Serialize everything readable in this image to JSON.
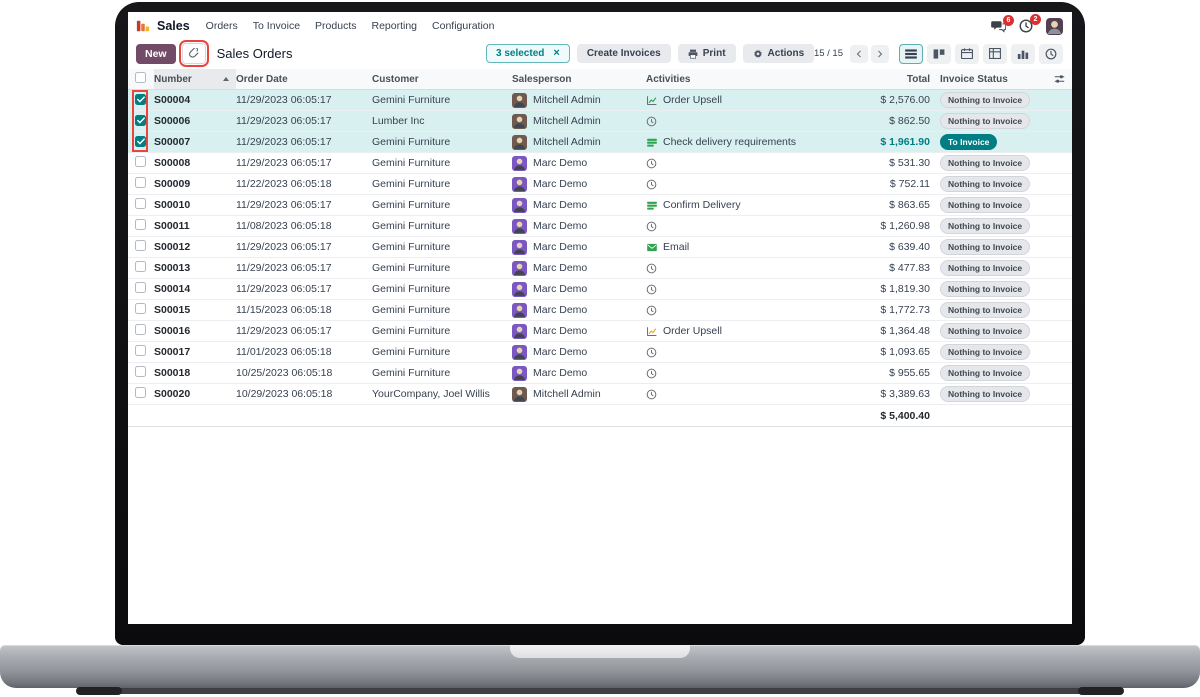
{
  "nav": {
    "app_name": "Sales",
    "menu_items": [
      "Orders",
      "To Invoice",
      "Products",
      "Reporting",
      "Configuration"
    ],
    "messages_badge": "6",
    "activities_badge": "2"
  },
  "control_bar": {
    "new_button": "New",
    "breadcrumb": "Sales Orders",
    "selected_count": "3 selected",
    "deselect_icon": "×",
    "create_invoices_button": "Create Invoices",
    "print_button": "Print",
    "actions_button": "Actions",
    "pager": "1-15 / 15"
  },
  "table": {
    "headers": {
      "number": "Number",
      "order_date": "Order Date",
      "customer": "Customer",
      "salesperson": "Salesperson",
      "activities": "Activities",
      "total": "Total",
      "invoice_status": "Invoice Status"
    },
    "rows": [
      {
        "number": "S00004",
        "order_date": "11/29/2023 06:05:17",
        "customer": "Gemini Furniture",
        "salesperson": "Mitchell Admin",
        "avatar": "mitchell",
        "activity": {
          "type": "upsell",
          "label": "Order Upsell",
          "color": "#2EA44F"
        },
        "total": "$ 2,576.00",
        "total_accent": false,
        "status": "Nothing to Invoice",
        "status_variant": "muted",
        "selected": true
      },
      {
        "number": "S00006",
        "order_date": "11/29/2023 06:05:17",
        "customer": "Lumber Inc",
        "salesperson": "Mitchell Admin",
        "avatar": "mitchell",
        "activity": {
          "type": "clock",
          "label": "",
          "color": "#6a6f75"
        },
        "total": "$ 862.50",
        "total_accent": false,
        "status": "Nothing to Invoice",
        "status_variant": "muted",
        "selected": true
      },
      {
        "number": "S00007",
        "order_date": "11/29/2023 06:05:17",
        "customer": "Gemini Furniture",
        "salesperson": "Mitchell Admin",
        "avatar": "mitchell",
        "activity": {
          "type": "list",
          "label": "Check delivery requirements",
          "color": "#2EA44F"
        },
        "total": "$ 1,961.90",
        "total_accent": true,
        "status": "To Invoice",
        "status_variant": "accent",
        "selected": true
      },
      {
        "number": "S00008",
        "order_date": "11/29/2023 06:05:17",
        "customer": "Gemini Furniture",
        "salesperson": "Marc Demo",
        "avatar": "marc",
        "activity": {
          "type": "clock",
          "label": "",
          "color": "#6a6f75"
        },
        "total": "$ 531.30",
        "total_accent": false,
        "status": "Nothing to Invoice",
        "status_variant": "muted",
        "selected": false
      },
      {
        "number": "S00009",
        "order_date": "11/22/2023 06:05:18",
        "customer": "Gemini Furniture",
        "salesperson": "Marc Demo",
        "avatar": "marc",
        "activity": {
          "type": "clock",
          "label": "",
          "color": "#6a6f75"
        },
        "total": "$ 752.11",
        "total_accent": false,
        "status": "Nothing to Invoice",
        "status_variant": "muted",
        "selected": false
      },
      {
        "number": "S00010",
        "order_date": "11/29/2023 06:05:17",
        "customer": "Gemini Furniture",
        "salesperson": "Marc Demo",
        "avatar": "marc",
        "activity": {
          "type": "list",
          "label": "Confirm Delivery",
          "color": "#2EA44F"
        },
        "total": "$ 863.65",
        "total_accent": false,
        "status": "Nothing to Invoice",
        "status_variant": "muted",
        "selected": false
      },
      {
        "number": "S00011",
        "order_date": "11/08/2023 06:05:18",
        "customer": "Gemini Furniture",
        "salesperson": "Marc Demo",
        "avatar": "marc",
        "activity": {
          "type": "clock",
          "label": "",
          "color": "#6a6f75"
        },
        "total": "$ 1,260.98",
        "total_accent": false,
        "status": "Nothing to Invoice",
        "status_variant": "muted",
        "selected": false
      },
      {
        "number": "S00012",
        "order_date": "11/29/2023 06:05:17",
        "customer": "Gemini Furniture",
        "salesperson": "Marc Demo",
        "avatar": "marc",
        "activity": {
          "type": "email",
          "label": "Email",
          "color": "#2EA44F"
        },
        "total": "$ 639.40",
        "total_accent": false,
        "status": "Nothing to Invoice",
        "status_variant": "muted",
        "selected": false
      },
      {
        "number": "S00013",
        "order_date": "11/29/2023 06:05:17",
        "customer": "Gemini Furniture",
        "salesperson": "Marc Demo",
        "avatar": "marc",
        "activity": {
          "type": "clock",
          "label": "",
          "color": "#6a6f75"
        },
        "total": "$ 477.83",
        "total_accent": false,
        "status": "Nothing to Invoice",
        "status_variant": "muted",
        "selected": false
      },
      {
        "number": "S00014",
        "order_date": "11/29/2023 06:05:17",
        "customer": "Gemini Furniture",
        "salesperson": "Marc Demo",
        "avatar": "marc",
        "activity": {
          "type": "clock",
          "label": "",
          "color": "#6a6f75"
        },
        "total": "$ 1,819.30",
        "total_accent": false,
        "status": "Nothing to Invoice",
        "status_variant": "muted",
        "selected": false
      },
      {
        "number": "S00015",
        "order_date": "11/15/2023 06:05:18",
        "customer": "Gemini Furniture",
        "salesperson": "Marc Demo",
        "avatar": "marc",
        "activity": {
          "type": "clock",
          "label": "",
          "color": "#6a6f75"
        },
        "total": "$ 1,772.73",
        "total_accent": false,
        "status": "Nothing to Invoice",
        "status_variant": "muted",
        "selected": false
      },
      {
        "number": "S00016",
        "order_date": "11/29/2023 06:05:17",
        "customer": "Gemini Furniture",
        "salesperson": "Marc Demo",
        "avatar": "marc",
        "activity": {
          "type": "upsell",
          "label": "Order Upsell",
          "color": "#E8A33D"
        },
        "total": "$ 1,364.48",
        "total_accent": false,
        "status": "Nothing to Invoice",
        "status_variant": "muted",
        "selected": false
      },
      {
        "number": "S00017",
        "order_date": "11/01/2023 06:05:18",
        "customer": "Gemini Furniture",
        "salesperson": "Marc Demo",
        "avatar": "marc",
        "activity": {
          "type": "clock",
          "label": "",
          "color": "#6a6f75"
        },
        "total": "$ 1,093.65",
        "total_accent": false,
        "status": "Nothing to Invoice",
        "status_variant": "muted",
        "selected": false
      },
      {
        "number": "S00018",
        "order_date": "10/25/2023 06:05:18",
        "customer": "Gemini Furniture",
        "salesperson": "Marc Demo",
        "avatar": "marc",
        "activity": {
          "type": "clock",
          "label": "",
          "color": "#6a6f75"
        },
        "total": "$ 955.65",
        "total_accent": false,
        "status": "Nothing to Invoice",
        "status_variant": "muted",
        "selected": false
      },
      {
        "number": "S00020",
        "order_date": "10/29/2023 06:05:18",
        "customer": "YourCompany, Joel Willis",
        "salesperson": "Mitchell Admin",
        "avatar": "mitchell",
        "activity": {
          "type": "clock",
          "label": "",
          "color": "#6a6f75"
        },
        "total": "$ 3,389.63",
        "total_accent": false,
        "status": "Nothing to Invoice",
        "status_variant": "muted",
        "selected": false
      }
    ],
    "footer_total": "$ 5,400.40"
  },
  "colors": {
    "accent": "#017E84",
    "primary": "#714B67",
    "selected_row": "#D8F1F0",
    "annotation": "#E8453C",
    "activity_green": "#2EA44F",
    "activity_orange": "#E8A33D",
    "badge_red": "#DC2F2F"
  }
}
